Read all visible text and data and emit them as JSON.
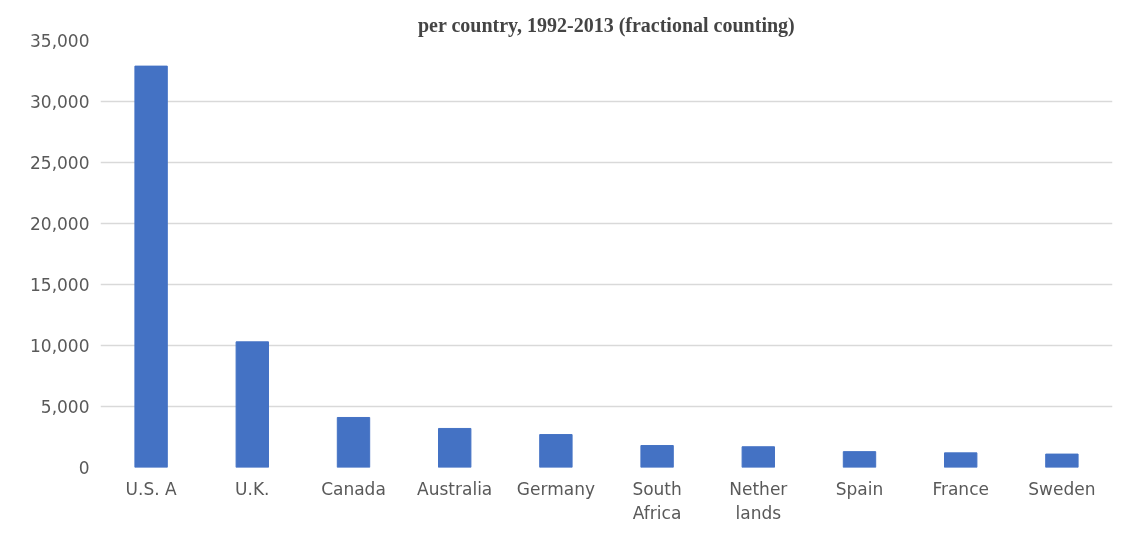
{
  "chart_data": {
    "type": "bar",
    "title": "per country, 1992-2013 (fractional counting)",
    "categories": [
      "U.S. A",
      "U.K.",
      "Canada",
      "Australia",
      "Germany",
      "South\nAfrica",
      "Nether\nlands",
      "Spain",
      "France",
      "Sweden"
    ],
    "values": [
      32900,
      10300,
      4100,
      3200,
      2700,
      1800,
      1700,
      1300,
      1200,
      1100
    ],
    "color": "#4472c4",
    "ylim": [
      0,
      35000
    ],
    "yticks": [
      {
        "value": 0,
        "label": "0"
      },
      {
        "value": 5000,
        "label": "5,000"
      },
      {
        "value": 10000,
        "label": "10,000"
      },
      {
        "value": 15000,
        "label": "15,000"
      },
      {
        "value": 20000,
        "label": "20,000"
      },
      {
        "value": 25000,
        "label": "25,000"
      },
      {
        "value": 30000,
        "label": "30,000"
      },
      {
        "value": 35000,
        "label": "35,000"
      }
    ],
    "grid": "y"
  }
}
